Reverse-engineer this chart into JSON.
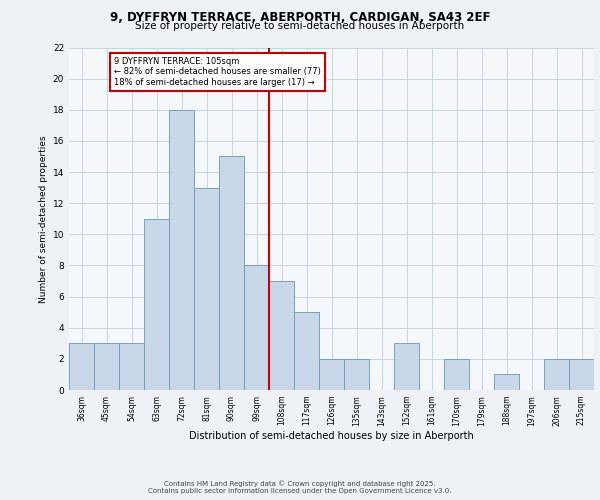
{
  "title": "9, DYFFRYN TERRACE, ABERPORTH, CARDIGAN, SA43 2EF",
  "subtitle": "Size of property relative to semi-detached houses in Aberporth",
  "xlabel": "Distribution of semi-detached houses by size in Aberporth",
  "ylabel": "Number of semi-detached properties",
  "categories": [
    "36sqm",
    "45sqm",
    "54sqm",
    "63sqm",
    "72sqm",
    "81sqm",
    "90sqm",
    "99sqm",
    "108sqm",
    "117sqm",
    "126sqm",
    "135sqm",
    "143sqm",
    "152sqm",
    "161sqm",
    "170sqm",
    "179sqm",
    "188sqm",
    "197sqm",
    "206sqm",
    "215sqm"
  ],
  "values": [
    3,
    3,
    3,
    11,
    18,
    13,
    15,
    8,
    7,
    5,
    2,
    2,
    0,
    3,
    0,
    2,
    0,
    1,
    0,
    2,
    2
  ],
  "bar_color": "#c8d8e8",
  "bar_edge_color": "#6699bb",
  "vline_color": "#cc0000",
  "annotation_title": "9 DYFFRYN TERRACE: 105sqm",
  "annotation_line1": "← 82% of semi-detached houses are smaller (77)",
  "annotation_line2": "18% of semi-detached houses are larger (17) →",
  "annotation_box_color": "#cc0000",
  "annotation_text_color": "#000000",
  "annotation_bg": "#ffffff",
  "ylim": [
    0,
    22
  ],
  "yticks": [
    0,
    2,
    4,
    6,
    8,
    10,
    12,
    14,
    16,
    18,
    20,
    22
  ],
  "footer_line1": "Contains HM Land Registry data © Crown copyright and database right 2025.",
  "footer_line2": "Contains public sector information licensed under the Open Government Licence v3.0.",
  "bg_color": "#eef2f6",
  "plot_bg_color": "#f5f8fb",
  "grid_color": "#c8d4de"
}
